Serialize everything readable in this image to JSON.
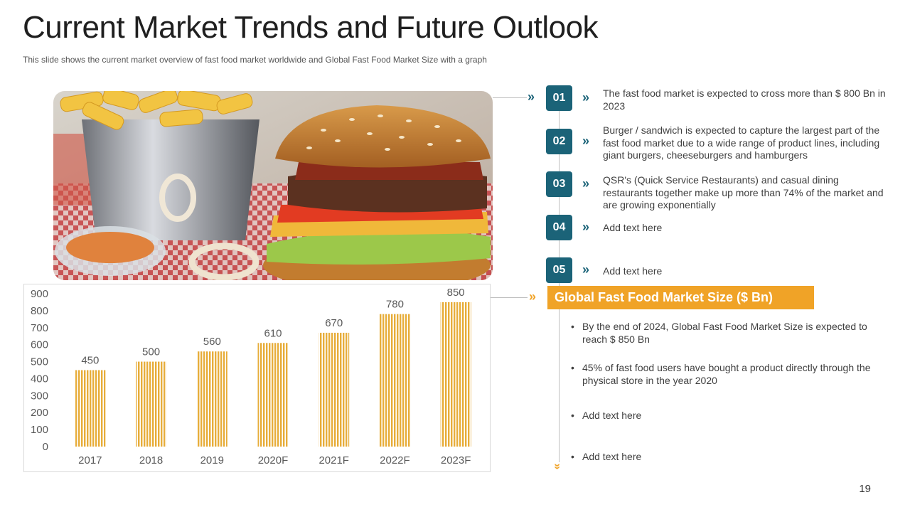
{
  "slide": {
    "title": "Current Market Trends and Future Outlook",
    "subtitle": "This slide shows the current market overview  of fast food market worldwide  and Global Fast Food Market Size with a graph",
    "page_number": "19"
  },
  "points": [
    {
      "num": "01",
      "text": "The fast food market is expected to cross more than $ 800 Bn in 2023"
    },
    {
      "num": "02",
      "text": "Burger / sandwich is expected to capture the largest part of the fast food market due to a wide range of product lines, including giant burgers, cheeseburgers and hamburgers"
    },
    {
      "num": "03",
      "text": "QSR's (Quick Service Restaurants) and casual dining restaurants together make up more than 74% of the market and are growing exponentially"
    },
    {
      "num": "04",
      "text": "Add text here"
    },
    {
      "num": "05",
      "text": "Add text here"
    }
  ],
  "market": {
    "heading": "Global Fast Food Market Size ($ Bn)",
    "bullets": [
      "By the end of 2024, Global Fast Food Market Size is expected to reach $ 850 Bn",
      "45% of fast food users have bought a product directly through the physical store in the year 2020",
      "Add text here",
      "Add text here"
    ]
  },
  "colors": {
    "teal": "#1b6378",
    "orange": "#f0a327",
    "bar": "#e7ad3a"
  },
  "icons": {
    "chevron": "double-chevron-right-icon",
    "photo": "burger-and-fries-photo"
  },
  "chart_data": {
    "type": "bar",
    "categories": [
      "2017",
      "2018",
      "2019",
      "2020F",
      "2021F",
      "2022F",
      "2023F"
    ],
    "values": [
      450,
      500,
      560,
      610,
      670,
      780,
      850
    ],
    "yticks": [
      0,
      100,
      200,
      300,
      400,
      500,
      600,
      700,
      800,
      900
    ],
    "ylim": [
      0,
      900
    ],
    "data_labels": true,
    "grid": false,
    "legend": "none"
  }
}
